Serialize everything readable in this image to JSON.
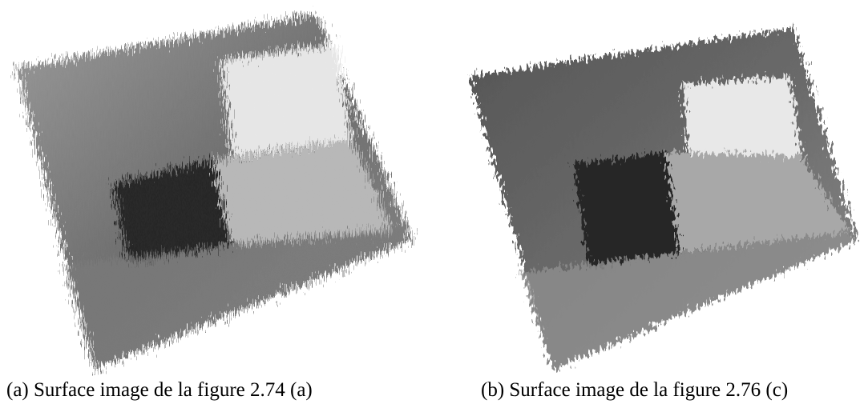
{
  "figure": {
    "subfigures": [
      {
        "caption": "(a) Surface image de la figure 2.74 (a)"
      },
      {
        "caption": "(b) Surface image de la figure 2.76 (c)"
      }
    ]
  }
}
